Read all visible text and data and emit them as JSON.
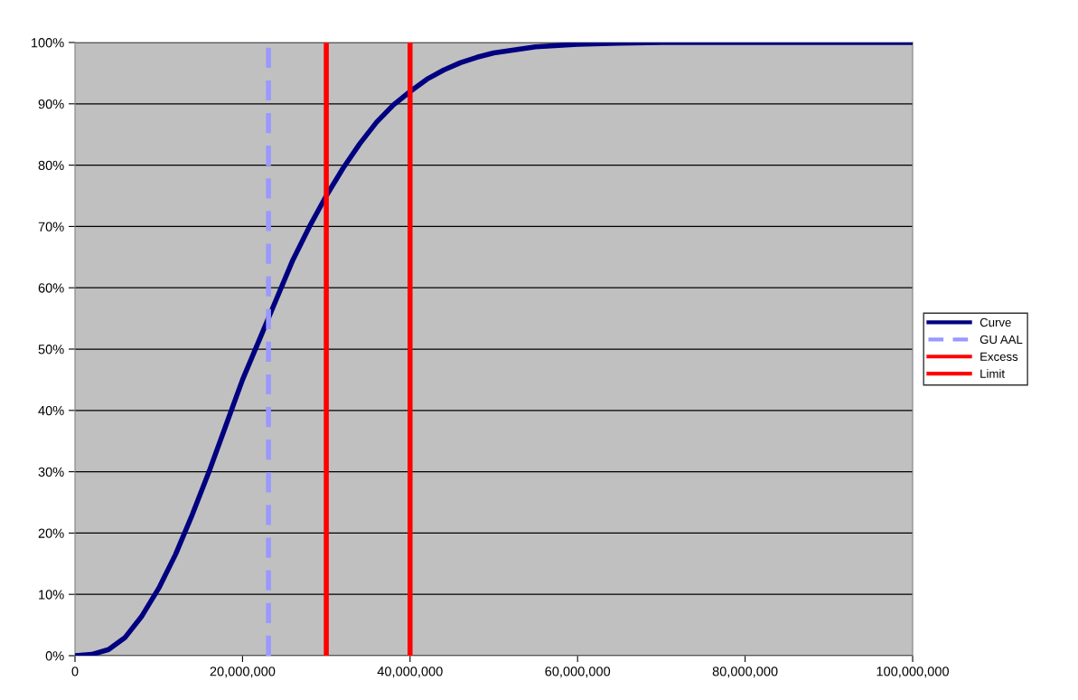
{
  "chart_data": {
    "type": "line",
    "series": [
      {
        "name": "Curve",
        "color": "#000080",
        "line_style": "solid",
        "x": [
          0,
          2000000,
          4000000,
          6000000,
          8000000,
          10000000,
          12000000,
          14000000,
          16000000,
          18000000,
          20000000,
          22000000,
          24000000,
          26000000,
          28000000,
          30000000,
          32000000,
          34000000,
          36000000,
          38000000,
          40000000,
          42000000,
          44000000,
          46000000,
          48000000,
          50000000,
          55000000,
          60000000,
          65000000,
          70000000,
          80000000,
          100000000
        ],
        "values": [
          0,
          0.2,
          1,
          3,
          6.5,
          11,
          16.5,
          23,
          30,
          37.5,
          45,
          51.5,
          58,
          64.5,
          70,
          75,
          79.5,
          83.5,
          87,
          89.8,
          92,
          94,
          95.5,
          96.7,
          97.6,
          98.3,
          99.3,
          99.7,
          99.9,
          100,
          100,
          100
        ]
      },
      {
        "name": "GU AAL",
        "color": "#9999ff",
        "line_style": "dashed",
        "x": [
          23100000,
          23100000
        ],
        "values": [
          0,
          100
        ]
      },
      {
        "name": "Excess",
        "color": "#ff0000",
        "line_style": "solid",
        "x": [
          30000000,
          30000000
        ],
        "values": [
          0,
          100
        ]
      },
      {
        "name": "Limit",
        "color": "#ff0000",
        "line_style": "solid",
        "x": [
          40000000,
          40000000
        ],
        "values": [
          0,
          100
        ]
      }
    ],
    "xlim": [
      0,
      100000000
    ],
    "xticks": [
      {
        "value": 0,
        "label": "0"
      },
      {
        "value": 20000000,
        "label": "20,000,000"
      },
      {
        "value": 40000000,
        "label": "40,000,000"
      },
      {
        "value": 60000000,
        "label": "60,000,000"
      },
      {
        "value": 80000000,
        "label": "80,000,000"
      },
      {
        "value": 100000000,
        "label": "100,000,000"
      }
    ],
    "ylim": [
      0,
      100
    ],
    "yticks": [
      {
        "value": 0,
        "label": "0%"
      },
      {
        "value": 10,
        "label": "10%"
      },
      {
        "value": 20,
        "label": "20%"
      },
      {
        "value": 30,
        "label": "30%"
      },
      {
        "value": 40,
        "label": "40%"
      },
      {
        "value": 50,
        "label": "50%"
      },
      {
        "value": 60,
        "label": "60%"
      },
      {
        "value": 70,
        "label": "70%"
      },
      {
        "value": 80,
        "label": "80%"
      },
      {
        "value": 90,
        "label": "90%"
      },
      {
        "value": 100,
        "label": "100%"
      }
    ],
    "grid": "y",
    "legend": "right",
    "marker": "none"
  }
}
